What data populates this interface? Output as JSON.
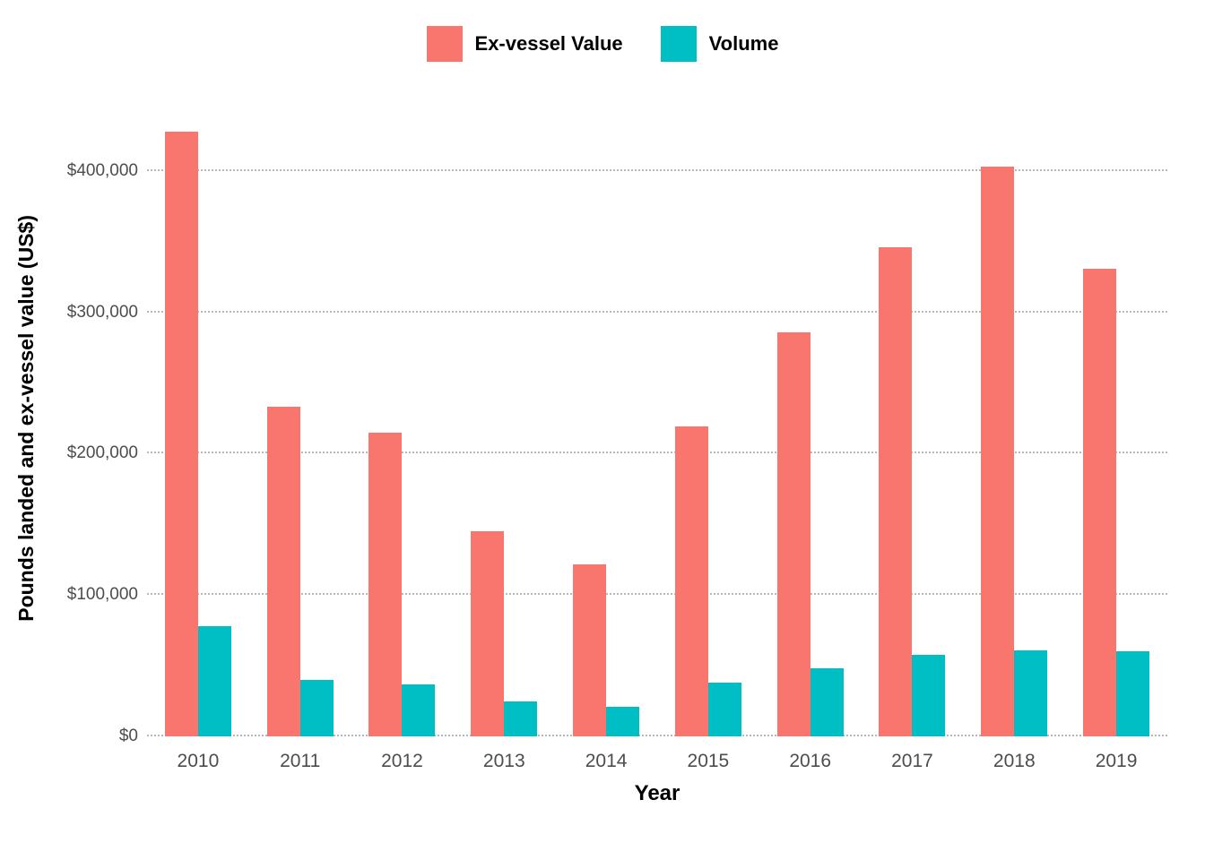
{
  "chart_data": {
    "type": "bar",
    "title": "",
    "xlabel": "Year",
    "ylabel": "Pounds landed and ex-vessel value (US$)",
    "categories": [
      "2010",
      "2011",
      "2012",
      "2013",
      "2014",
      "2015",
      "2016",
      "2017",
      "2018",
      "2019"
    ],
    "series": [
      {
        "name": "Ex-vessel Value",
        "color": "#F8766D",
        "values": [
          428000,
          233000,
          215000,
          145000,
          122000,
          219000,
          286000,
          346000,
          403000,
          331000
        ]
      },
      {
        "name": "Volume",
        "color": "#00BFC4",
        "values": [
          78000,
          40000,
          37000,
          25000,
          21000,
          38000,
          48000,
          58000,
          61000,
          60000
        ]
      }
    ],
    "y_ticks": [
      {
        "value": 0,
        "label": "$0"
      },
      {
        "value": 100000,
        "label": "$100,000"
      },
      {
        "value": 200000,
        "label": "$200,000"
      },
      {
        "value": 300000,
        "label": "$300,000"
      },
      {
        "value": 400000,
        "label": "$400,000"
      }
    ],
    "ylim": [
      0,
      450000
    ],
    "grid": "dotted-horizontal",
    "legend_position": "top"
  }
}
